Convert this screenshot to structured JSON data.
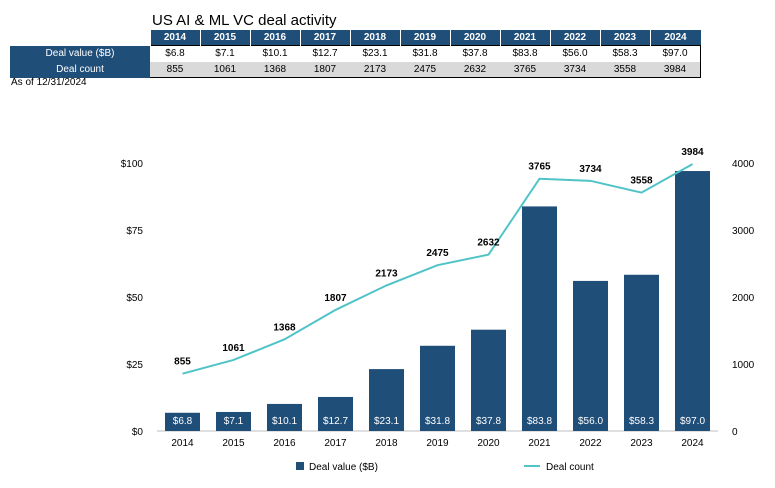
{
  "title": "US AI & ML VC deal activity",
  "as_of": "As of 12/31/2024",
  "table": {
    "row_labels": [
      "Deal value ($B)",
      "Deal count"
    ],
    "years": [
      "2014",
      "2015",
      "2016",
      "2017",
      "2018",
      "2019",
      "2020",
      "2021",
      "2022",
      "2023",
      "2024"
    ],
    "deal_value": [
      "$6.8",
      "$7.1",
      "$10.1",
      "$12.7",
      "$23.1",
      "$31.8",
      "$37.8",
      "$83.8",
      "$56.0",
      "$58.3",
      "$97.0"
    ],
    "deal_count": [
      "855",
      "1061",
      "1368",
      "1807",
      "2173",
      "2475",
      "2632",
      "3765",
      "3734",
      "3558",
      "3984"
    ]
  },
  "chart_data": {
    "type": "bar",
    "categories": [
      "2014",
      "2015",
      "2016",
      "2017",
      "2018",
      "2019",
      "2020",
      "2021",
      "2022",
      "2023",
      "2024"
    ],
    "series": [
      {
        "name": "Deal value ($B)",
        "type": "bar",
        "axis": "left",
        "values": [
          6.8,
          7.1,
          10.1,
          12.7,
          23.1,
          31.8,
          37.8,
          83.8,
          56.0,
          58.3,
          97.0
        ],
        "labels": [
          "$6.8",
          "$7.1",
          "$10.1",
          "$12.7",
          "$23.1",
          "$31.8",
          "$37.8",
          "$83.8",
          "$56.0",
          "$58.3",
          "$97.0"
        ],
        "color": "#1f4e79"
      },
      {
        "name": "Deal count",
        "type": "line",
        "axis": "right",
        "values": [
          855,
          1061,
          1368,
          1807,
          2173,
          2475,
          2632,
          3765,
          3734,
          3558,
          3984
        ],
        "labels": [
          "855",
          "1061",
          "1368",
          "1807",
          "2173",
          "2475",
          "2632",
          "3765",
          "3734",
          "3558",
          "3984"
        ],
        "color": "#4fc3c7"
      }
    ],
    "ylim_left": [
      0,
      100
    ],
    "yticks_left": [
      "$0",
      "$25",
      "$50",
      "$75",
      "$100"
    ],
    "ylim_right": [
      0,
      4000
    ],
    "yticks_right": [
      "0",
      "1000",
      "2000",
      "3000",
      "4000"
    ],
    "grid": false,
    "legend": "bottom"
  }
}
